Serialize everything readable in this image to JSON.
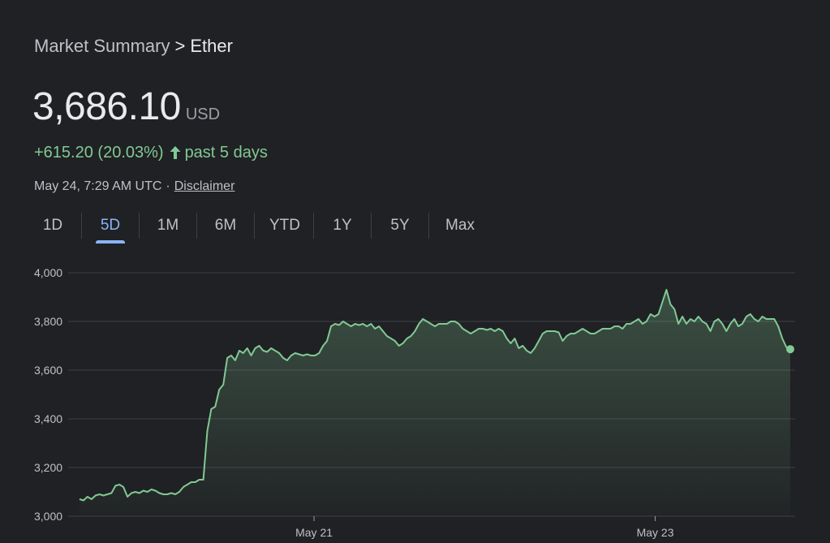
{
  "breadcrumb": {
    "parent": "Market Summary",
    "separator": ">",
    "current": "Ether"
  },
  "price": {
    "value": "3,686.10",
    "currency": "USD"
  },
  "change": {
    "text": "+615.20 (20.03%)",
    "period": "past 5 days",
    "direction_icon": "arrow-up-icon",
    "color": "#81c995"
  },
  "meta": {
    "timestamp": "May 24, 7:29 AM UTC",
    "separator": "·",
    "disclaimer": "Disclaimer"
  },
  "tabs": [
    {
      "label": "1D",
      "active": false
    },
    {
      "label": "5D",
      "active": true
    },
    {
      "label": "1M",
      "active": false
    },
    {
      "label": "6M",
      "active": false
    },
    {
      "label": "YTD",
      "active": false
    },
    {
      "label": "1Y",
      "active": false
    },
    {
      "label": "5Y",
      "active": false
    },
    {
      "label": "Max",
      "active": false
    }
  ],
  "colors": {
    "background": "#202124",
    "line": "#81c995",
    "active_tab": "#8ab4f8",
    "grid": "#3c4043"
  },
  "chart_data": {
    "type": "area",
    "title": "",
    "xlabel": "",
    "ylabel": "",
    "ylim": [
      3000,
      4000
    ],
    "yticks": [
      3000,
      3200,
      3400,
      3600,
      3800,
      4000
    ],
    "ytick_labels": [
      "3,000",
      "3,200",
      "3,400",
      "3,600",
      "3,800",
      "4,000"
    ],
    "xticks": [
      {
        "label": "May 21",
        "at": 0.33
      },
      {
        "label": "May 23",
        "at": 0.81
      }
    ],
    "grid": true,
    "last_point_marker": true,
    "series": [
      {
        "values": [
          3070,
          3065,
          3080,
          3070,
          3085,
          3090,
          3085,
          3090,
          3095,
          3125,
          3130,
          3120,
          3080,
          3095,
          3100,
          3095,
          3105,
          3100,
          3110,
          3105,
          3095,
          3090,
          3090,
          3095,
          3090,
          3100,
          3120,
          3130,
          3140,
          3140,
          3150,
          3150,
          3350,
          3440,
          3450,
          3520,
          3540,
          3650,
          3660,
          3640,
          3680,
          3670,
          3690,
          3660,
          3690,
          3700,
          3680,
          3675,
          3690,
          3680,
          3670,
          3650,
          3640,
          3660,
          3670,
          3665,
          3660,
          3665,
          3660,
          3660,
          3670,
          3700,
          3720,
          3780,
          3790,
          3785,
          3800,
          3790,
          3780,
          3790,
          3785,
          3790,
          3780,
          3790,
          3770,
          3780,
          3760,
          3740,
          3730,
          3720,
          3700,
          3710,
          3730,
          3740,
          3760,
          3790,
          3810,
          3800,
          3790,
          3780,
          3790,
          3790,
          3790,
          3800,
          3800,
          3790,
          3770,
          3760,
          3750,
          3760,
          3770,
          3770,
          3765,
          3770,
          3760,
          3770,
          3760,
          3730,
          3710,
          3730,
          3690,
          3700,
          3680,
          3670,
          3690,
          3720,
          3750,
          3760,
          3760,
          3760,
          3755,
          3720,
          3740,
          3750,
          3750,
          3760,
          3770,
          3760,
          3750,
          3750,
          3760,
          3770,
          3770,
          3770,
          3780,
          3780,
          3770,
          3790,
          3790,
          3800,
          3810,
          3790,
          3800,
          3830,
          3820,
          3830,
          3880,
          3930,
          3870,
          3850,
          3790,
          3820,
          3790,
          3810,
          3800,
          3820,
          3800,
          3790,
          3760,
          3800,
          3810,
          3790,
          3760,
          3790,
          3810,
          3780,
          3790,
          3820,
          3830,
          3810,
          3800,
          3820,
          3810,
          3810,
          3810,
          3780,
          3730,
          3695,
          3686
        ]
      }
    ]
  }
}
